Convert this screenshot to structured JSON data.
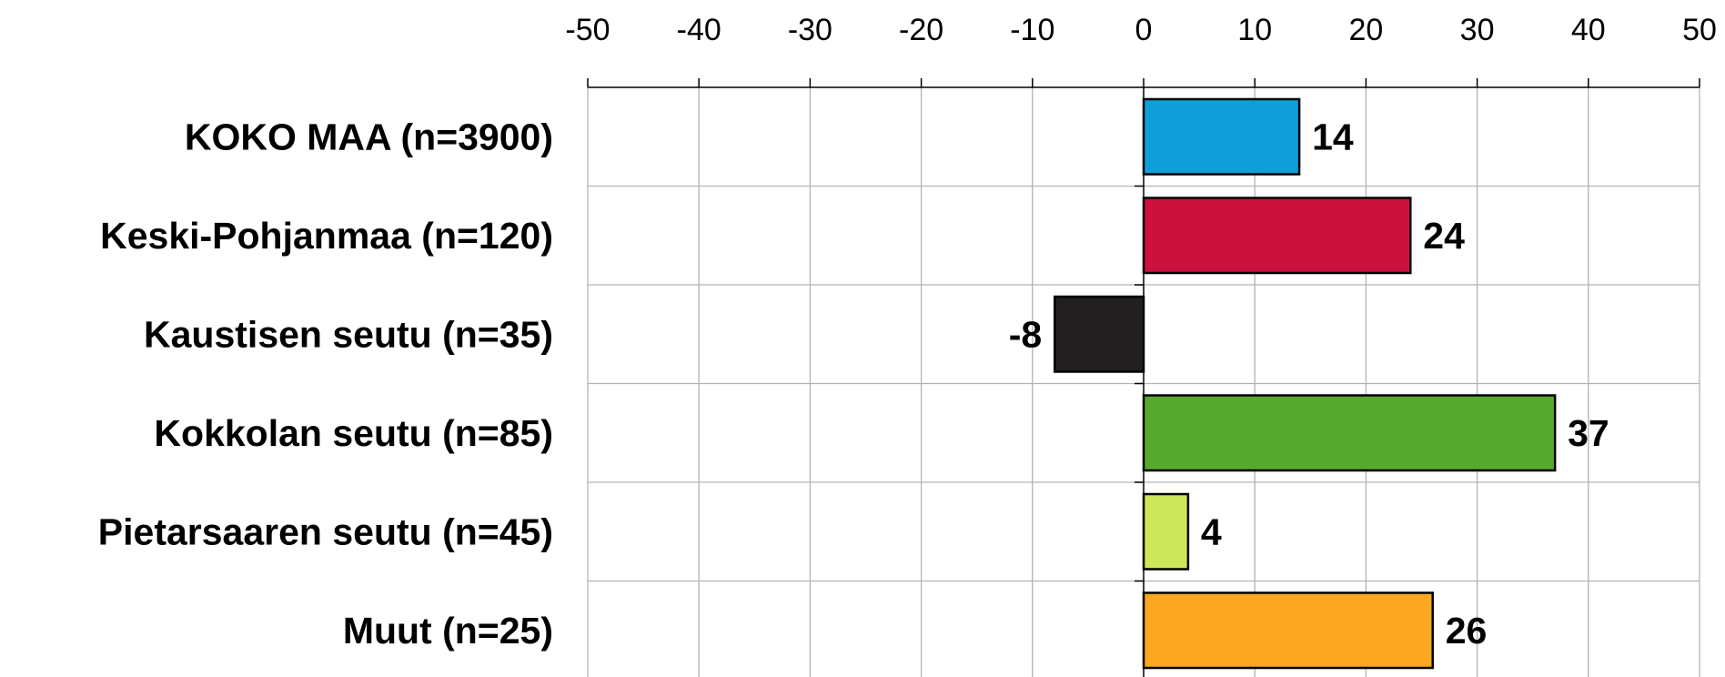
{
  "chart_data": {
    "type": "bar",
    "orientation": "horizontal",
    "title": "",
    "xlabel": "",
    "ylabel": "",
    "xlim": [
      -50,
      50
    ],
    "x_ticks": [
      -50,
      -40,
      -30,
      -20,
      -10,
      0,
      10,
      20,
      30,
      40,
      50
    ],
    "x_tick_labels": [
      "-50",
      "-40",
      "-30",
      "-20",
      "-10",
      "0",
      "10",
      "20",
      "30",
      "40",
      "50"
    ],
    "x_axis_position": "top",
    "grid": true,
    "legend": "none",
    "categories": [
      "KOKO MAA (n=3900)",
      "Keski-Pohjanmaa (n=120)",
      "Kaustisen seutu (n=35)",
      "Kokkolan seutu (n=85)",
      "Pietarsaaren seutu (n=45)",
      "Muut (n=25)"
    ],
    "values": [
      14,
      24,
      -8,
      37,
      4,
      26
    ],
    "value_labels": [
      "14",
      "24",
      "-8",
      "37",
      "4",
      "26"
    ],
    "colors": [
      "#119fda",
      "#cd113e",
      "#221f20",
      "#57a92d",
      "#cde65a",
      "#fba722"
    ]
  }
}
